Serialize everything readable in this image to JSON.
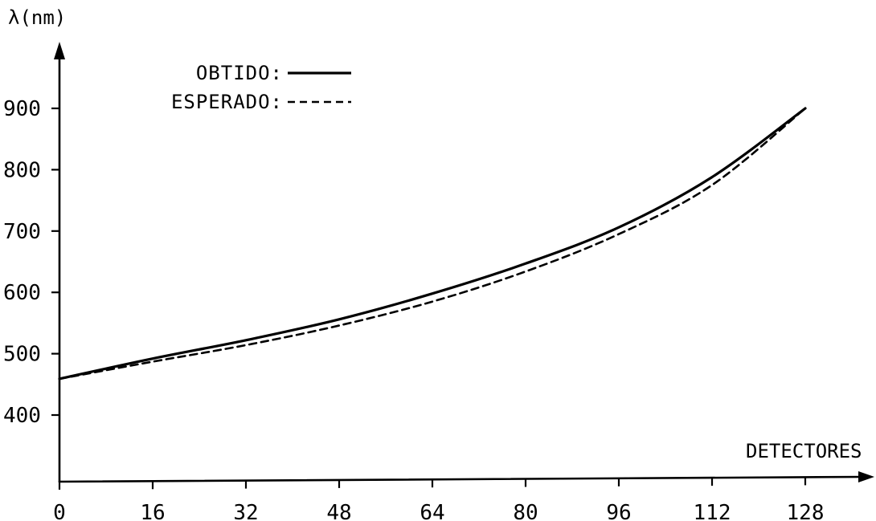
{
  "chart_data": {
    "type": "line",
    "title": "",
    "xlabel": "DETECTORES",
    "ylabel": "λ(nm)",
    "xlim": [
      0,
      128
    ],
    "ylim": [
      400,
      900
    ],
    "grid": false,
    "legend_position": "top-left",
    "x_ticks": [
      "0",
      "16",
      "32",
      "48",
      "64",
      "80",
      "96",
      "112",
      "128"
    ],
    "y_ticks": [
      "400",
      "500",
      "600",
      "700",
      "800",
      "900"
    ],
    "series": [
      {
        "name": "OBTIDO:",
        "style": "solid",
        "x": [
          0,
          16,
          32,
          48,
          64,
          80,
          96,
          112,
          128
        ],
        "y": [
          459,
          492,
          522,
          556,
          598,
          647,
          706,
          788,
          900
        ]
      },
      {
        "name": "ESPERADO:",
        "style": "dashed",
        "x": [
          0,
          16,
          32,
          48,
          64,
          80,
          96,
          112,
          128
        ],
        "y": [
          459,
          487,
          514,
          546,
          585,
          634,
          695,
          775,
          900
        ]
      }
    ]
  }
}
